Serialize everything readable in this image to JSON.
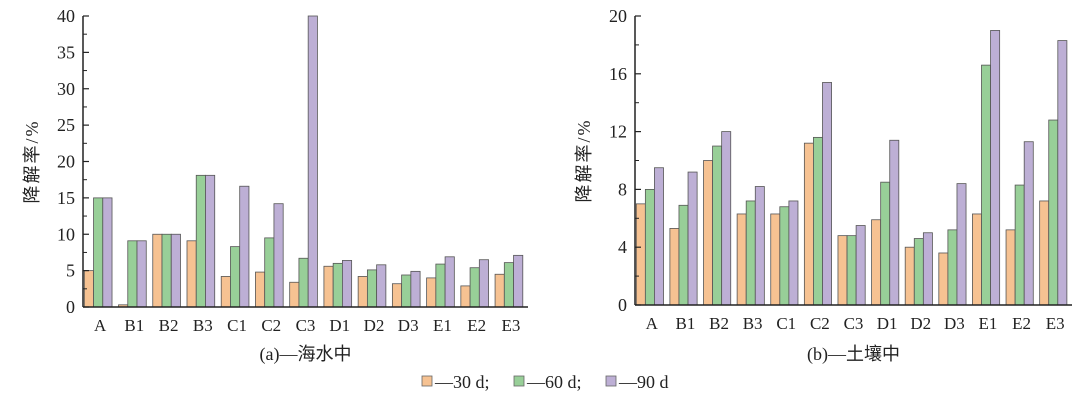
{
  "colors": {
    "30d": "#f6c292",
    "60d": "#98cf98",
    "90d": "#bdafd5",
    "axis": "#222222"
  },
  "legend": [
    {
      "key": "30d",
      "label": "—30 d;"
    },
    {
      "key": "60d",
      "label": "—60 d;"
    },
    {
      "key": "90d",
      "label": "—90 d"
    }
  ],
  "chart_data": [
    {
      "type": "bar",
      "title": "(a)—海水中",
      "ylabel": "降解率/%",
      "xlabel": "",
      "ylim": [
        0,
        40
      ],
      "yticks": [
        0,
        5,
        10,
        15,
        20,
        25,
        30,
        35,
        40
      ],
      "categories": [
        "A",
        "B1",
        "B2",
        "B3",
        "C1",
        "C2",
        "C3",
        "D1",
        "D2",
        "D3",
        "E1",
        "E2",
        "E3"
      ],
      "series": [
        {
          "name": "30 d",
          "key": "30d",
          "values": [
            5.0,
            0.3,
            10.0,
            9.1,
            4.2,
            4.8,
            3.4,
            5.6,
            4.2,
            3.2,
            4.0,
            2.9,
            4.5
          ]
        },
        {
          "name": "60 d",
          "key": "60d",
          "values": [
            15.0,
            9.1,
            10.0,
            18.1,
            8.3,
            9.5,
            6.7,
            6.0,
            5.1,
            4.4,
            5.9,
            5.4,
            6.1
          ]
        },
        {
          "name": "90 d",
          "key": "90d",
          "values": [
            15.0,
            9.1,
            10.0,
            18.1,
            16.6,
            14.2,
            40.0,
            6.4,
            5.8,
            4.9,
            6.9,
            6.5,
            7.1
          ]
        }
      ]
    },
    {
      "type": "bar",
      "title": "(b)—土壤中",
      "ylabel": "降解率/%",
      "xlabel": "",
      "ylim": [
        0,
        20
      ],
      "yticks": [
        0,
        4,
        8,
        12,
        16,
        20
      ],
      "categories": [
        "A",
        "B1",
        "B2",
        "B3",
        "C1",
        "C2",
        "C3",
        "D1",
        "D2",
        "D3",
        "E1",
        "E2",
        "E3"
      ],
      "series": [
        {
          "name": "30 d",
          "key": "30d",
          "values": [
            7.0,
            5.3,
            10.0,
            6.3,
            6.3,
            11.2,
            4.8,
            5.9,
            4.0,
            3.6,
            6.3,
            5.2,
            7.2
          ]
        },
        {
          "name": "60 d",
          "key": "60d",
          "values": [
            8.0,
            6.9,
            11.0,
            7.2,
            6.8,
            11.6,
            4.8,
            8.5,
            4.6,
            5.2,
            16.6,
            8.3,
            12.8
          ]
        },
        {
          "name": "90 d",
          "key": "90d",
          "values": [
            9.5,
            9.2,
            12.0,
            8.2,
            7.2,
            15.4,
            5.5,
            11.4,
            5.0,
            8.4,
            19.0,
            11.3,
            18.3
          ]
        }
      ]
    }
  ]
}
